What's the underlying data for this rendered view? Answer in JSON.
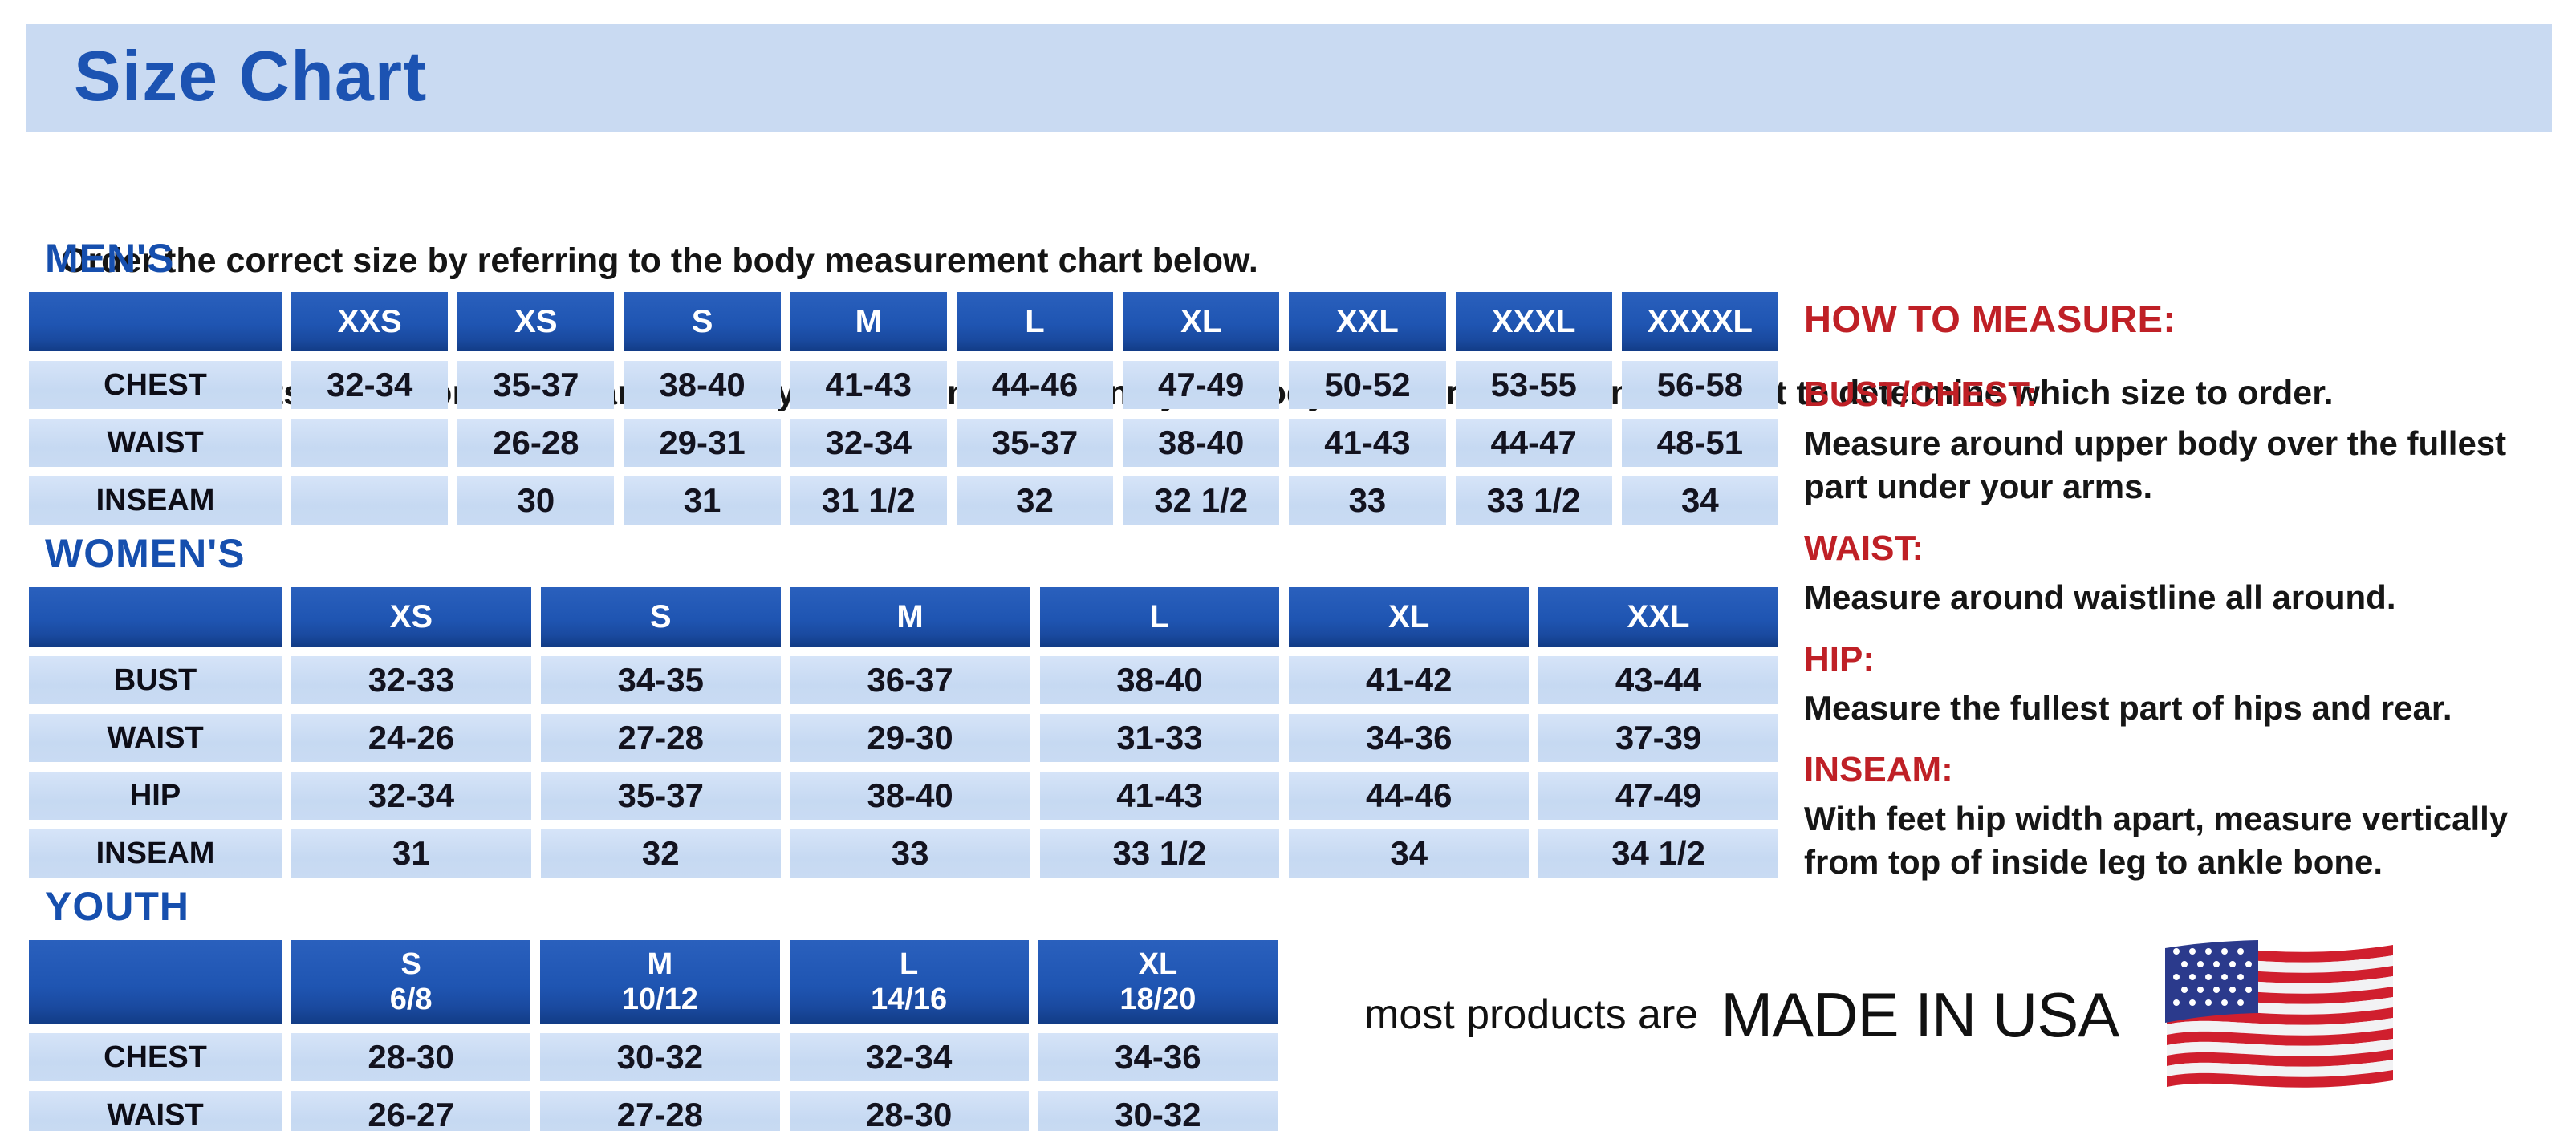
{
  "page": {
    "title": "Size Chart",
    "intro_line1": "Order the correct size by referring to the body measurement chart below.",
    "intro_line2": "Measurements shown on size chart are body measurements.  Find your body measurements on the chart to determine which size to order."
  },
  "colors": {
    "banner_blue": "#c9daf2",
    "title_blue": "#1c53b2",
    "table_header_blue": "#1f55b2",
    "table_header_dark_edge": "#123c86",
    "cell_light_blue": "#c9dbf3",
    "accent_red": "#bf2026",
    "text_black": "#151515"
  },
  "sections": {
    "mens": {
      "heading": "MEN'S",
      "columns": [
        {
          "label": "XXS"
        },
        {
          "label": "XS"
        },
        {
          "label": "S"
        },
        {
          "label": "M"
        },
        {
          "label": "L"
        },
        {
          "label": "XL"
        },
        {
          "label": "XXL"
        },
        {
          "label": "XXXL"
        },
        {
          "label": "XXXXL"
        }
      ],
      "rows": [
        {
          "label": "CHEST",
          "values": [
            "32-34",
            "35-37",
            "38-40",
            "41-43",
            "44-46",
            "47-49",
            "50-52",
            "53-55",
            "56-58"
          ]
        },
        {
          "label": "WAIST",
          "values": [
            "",
            "26-28",
            "29-31",
            "32-34",
            "35-37",
            "38-40",
            "41-43",
            "44-47",
            "48-51"
          ]
        },
        {
          "label": "INSEAM",
          "values": [
            "",
            "30",
            "31",
            "31 1/2",
            "32",
            "32 1/2",
            "33",
            "33 1/2",
            "34"
          ]
        }
      ]
    },
    "womens": {
      "heading": "WOMEN'S",
      "columns": [
        {
          "label": "XS"
        },
        {
          "label": "S"
        },
        {
          "label": "M"
        },
        {
          "label": "L"
        },
        {
          "label": "XL"
        },
        {
          "label": "XXL"
        }
      ],
      "rows": [
        {
          "label": "BUST",
          "values": [
            "32-33",
            "34-35",
            "36-37",
            "38-40",
            "41-42",
            "43-44"
          ]
        },
        {
          "label": "WAIST",
          "values": [
            "24-26",
            "27-28",
            "29-30",
            "31-33",
            "34-36",
            "37-39"
          ]
        },
        {
          "label": "HIP",
          "values": [
            "32-34",
            "35-37",
            "38-40",
            "41-43",
            "44-46",
            "47-49"
          ]
        },
        {
          "label": "INSEAM",
          "values": [
            "31",
            "32",
            "33",
            "33 1/2",
            "34",
            "34 1/2"
          ]
        }
      ]
    },
    "youth": {
      "heading": "YOUTH",
      "columns": [
        {
          "label": "S",
          "sub": "6/8"
        },
        {
          "label": "M",
          "sub": "10/12"
        },
        {
          "label": "L",
          "sub": "14/16"
        },
        {
          "label": "XL",
          "sub": "18/20"
        }
      ],
      "rows": [
        {
          "label": "CHEST",
          "values": [
            "28-30",
            "30-32",
            "32-34",
            "34-36"
          ]
        },
        {
          "label": "WAIST",
          "values": [
            "26-27",
            "27-28",
            "28-30",
            "30-32"
          ]
        }
      ]
    }
  },
  "how_to_measure": {
    "heading": "HOW TO MEASURE:",
    "items": [
      {
        "label": "BUST/CHEST:",
        "text": "Measure around upper body over the fullest part under your arms."
      },
      {
        "label": "WAIST:",
        "text": "Measure around waistline all around."
      },
      {
        "label": "HIP:",
        "text": "Measure the fullest part of hips and rear."
      },
      {
        "label": "INSEAM:",
        "text": "With feet hip width apart, measure vertically from top of inside leg to ankle bone."
      }
    ]
  },
  "footer": {
    "made_in_prefix": "most products are",
    "made_in": "MADE IN USA",
    "flag_icon": "usa-flag"
  }
}
